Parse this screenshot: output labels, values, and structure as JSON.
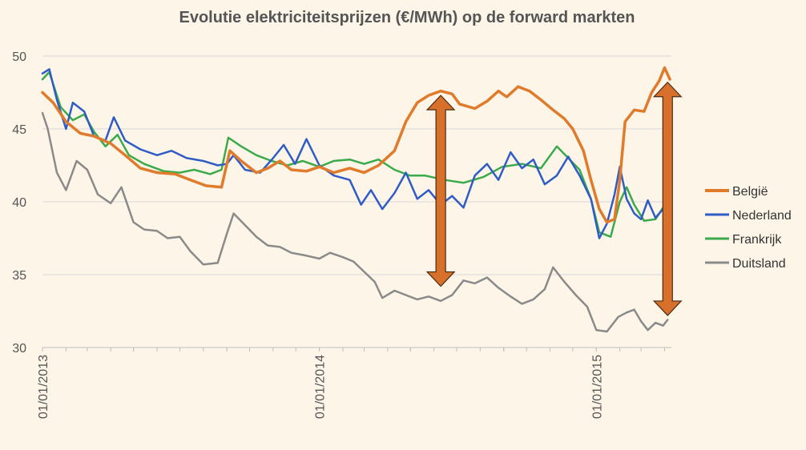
{
  "chart_data": {
    "type": "line",
    "title": "Evolutie elektriciteitsprijzen (€/MWh) op de forward markten",
    "xlabel": "",
    "ylabel": "",
    "ylim": [
      30,
      50
    ],
    "yticks": [
      30,
      35,
      40,
      45,
      50
    ],
    "xlim": [
      "2013-01-01",
      "2015-04-10"
    ],
    "xticks": [
      "01/01/2013",
      "01/01/2014",
      "01/01/2015"
    ],
    "grid": "horizontal",
    "legend_position": "right",
    "series": [
      {
        "name": "België",
        "color": "#e07b2c",
        "points": [
          [
            "2013-01-01",
            47.5
          ],
          [
            "2013-01-15",
            46.8
          ],
          [
            "2013-02-01",
            45.5
          ],
          [
            "2013-02-20",
            44.7
          ],
          [
            "2013-03-10",
            44.5
          ],
          [
            "2013-04-01",
            44.0
          ],
          [
            "2013-04-20",
            43.2
          ],
          [
            "2013-05-10",
            42.3
          ],
          [
            "2013-06-01",
            42.0
          ],
          [
            "2013-06-25",
            41.9
          ],
          [
            "2013-07-15",
            41.5
          ],
          [
            "2013-08-05",
            41.1
          ],
          [
            "2013-08-25",
            41.0
          ],
          [
            "2013-09-05",
            43.5
          ],
          [
            "2013-09-20",
            42.8
          ],
          [
            "2013-10-10",
            42.0
          ],
          [
            "2013-10-25",
            42.3
          ],
          [
            "2013-11-10",
            42.8
          ],
          [
            "2013-11-25",
            42.2
          ],
          [
            "2013-12-15",
            42.1
          ],
          [
            "2014-01-01",
            42.4
          ],
          [
            "2014-01-20",
            42.0
          ],
          [
            "2014-02-10",
            42.3
          ],
          [
            "2014-03-01",
            42.0
          ],
          [
            "2014-03-20",
            42.5
          ],
          [
            "2014-04-10",
            43.5
          ],
          [
            "2014-04-25",
            45.5
          ],
          [
            "2014-05-10",
            46.8
          ],
          [
            "2014-05-25",
            47.3
          ],
          [
            "2014-06-10",
            47.6
          ],
          [
            "2014-06-25",
            47.4
          ],
          [
            "2014-07-05",
            46.7
          ],
          [
            "2014-07-25",
            46.4
          ],
          [
            "2014-08-10",
            46.9
          ],
          [
            "2014-08-25",
            47.6
          ],
          [
            "2014-09-05",
            47.2
          ],
          [
            "2014-09-20",
            47.9
          ],
          [
            "2014-10-05",
            47.6
          ],
          [
            "2014-10-20",
            47.0
          ],
          [
            "2014-11-05",
            46.3
          ],
          [
            "2014-11-20",
            45.7
          ],
          [
            "2014-12-01",
            45.0
          ],
          [
            "2014-12-15",
            43.5
          ],
          [
            "2014-12-25",
            41.5
          ],
          [
            "2015-01-05",
            39.5
          ],
          [
            "2015-01-15",
            38.6
          ],
          [
            "2015-01-25",
            38.8
          ],
          [
            "2015-02-01",
            41.5
          ],
          [
            "2015-02-08",
            45.5
          ],
          [
            "2015-02-20",
            46.3
          ],
          [
            "2015-03-05",
            46.2
          ],
          [
            "2015-03-15",
            47.5
          ],
          [
            "2015-03-25",
            48.3
          ],
          [
            "2015-04-01",
            49.2
          ],
          [
            "2015-04-08",
            48.4
          ]
        ]
      },
      {
        "name": "Nederland",
        "color": "#2f5cc5",
        "points": [
          [
            "2013-01-01",
            48.8
          ],
          [
            "2013-01-10",
            49.1
          ],
          [
            "2013-01-20",
            47.0
          ],
          [
            "2013-02-01",
            45.0
          ],
          [
            "2013-02-10",
            46.8
          ],
          [
            "2013-02-25",
            46.2
          ],
          [
            "2013-03-10",
            44.5
          ],
          [
            "2013-03-25",
            44.2
          ],
          [
            "2013-04-05",
            45.8
          ],
          [
            "2013-04-20",
            44.2
          ],
          [
            "2013-05-10",
            43.6
          ],
          [
            "2013-06-01",
            43.2
          ],
          [
            "2013-06-20",
            43.5
          ],
          [
            "2013-07-10",
            43.0
          ],
          [
            "2013-08-01",
            42.8
          ],
          [
            "2013-08-20",
            42.5
          ],
          [
            "2013-09-01",
            42.6
          ],
          [
            "2013-09-10",
            43.2
          ],
          [
            "2013-09-25",
            42.2
          ],
          [
            "2013-10-15",
            42.0
          ],
          [
            "2013-11-01",
            43.0
          ],
          [
            "2013-11-15",
            43.9
          ],
          [
            "2013-11-30",
            42.6
          ],
          [
            "2013-12-15",
            44.3
          ],
          [
            "2014-01-01",
            42.5
          ],
          [
            "2014-01-20",
            41.8
          ],
          [
            "2014-02-10",
            41.5
          ],
          [
            "2014-02-25",
            39.8
          ],
          [
            "2014-03-10",
            40.8
          ],
          [
            "2014-03-25",
            39.5
          ],
          [
            "2014-04-10",
            40.6
          ],
          [
            "2014-04-25",
            42.0
          ],
          [
            "2014-05-10",
            40.2
          ],
          [
            "2014-05-25",
            40.8
          ],
          [
            "2014-06-10",
            39.8
          ],
          [
            "2014-06-25",
            40.4
          ],
          [
            "2014-07-10",
            39.6
          ],
          [
            "2014-07-25",
            41.8
          ],
          [
            "2014-08-10",
            42.6
          ],
          [
            "2014-08-25",
            41.5
          ],
          [
            "2014-09-10",
            43.4
          ],
          [
            "2014-09-25",
            42.3
          ],
          [
            "2014-10-10",
            42.9
          ],
          [
            "2014-10-25",
            41.2
          ],
          [
            "2014-11-10",
            41.8
          ],
          [
            "2014-11-25",
            43.1
          ],
          [
            "2014-12-10",
            41.8
          ],
          [
            "2014-12-25",
            40.2
          ],
          [
            "2015-01-05",
            37.5
          ],
          [
            "2015-01-15",
            38.5
          ],
          [
            "2015-01-25",
            40.5
          ],
          [
            "2015-02-01",
            42.4
          ],
          [
            "2015-02-10",
            40.2
          ],
          [
            "2015-02-20",
            39.2
          ],
          [
            "2015-03-01",
            38.8
          ],
          [
            "2015-03-10",
            40.1
          ],
          [
            "2015-03-20",
            38.9
          ],
          [
            "2015-03-30",
            39.5
          ]
        ]
      },
      {
        "name": "Frankrijk",
        "color": "#3aaa4a",
        "points": [
          [
            "2013-01-01",
            48.4
          ],
          [
            "2013-01-10",
            48.9
          ],
          [
            "2013-01-25",
            46.5
          ],
          [
            "2013-02-10",
            45.6
          ],
          [
            "2013-02-25",
            46.0
          ],
          [
            "2013-03-10",
            44.8
          ],
          [
            "2013-03-25",
            43.8
          ],
          [
            "2013-04-10",
            44.6
          ],
          [
            "2013-04-25",
            43.2
          ],
          [
            "2013-05-15",
            42.6
          ],
          [
            "2013-06-10",
            42.1
          ],
          [
            "2013-07-01",
            42.0
          ],
          [
            "2013-07-20",
            42.2
          ],
          [
            "2013-08-10",
            41.9
          ],
          [
            "2013-08-25",
            42.2
          ],
          [
            "2013-09-03",
            44.4
          ],
          [
            "2013-09-20",
            43.8
          ],
          [
            "2013-10-10",
            43.2
          ],
          [
            "2013-10-30",
            42.8
          ],
          [
            "2013-11-20",
            42.5
          ],
          [
            "2013-12-10",
            42.8
          ],
          [
            "2014-01-01",
            42.4
          ],
          [
            "2014-01-20",
            42.8
          ],
          [
            "2014-02-10",
            42.9
          ],
          [
            "2014-03-01",
            42.6
          ],
          [
            "2014-03-20",
            42.9
          ],
          [
            "2014-04-10",
            42.2
          ],
          [
            "2014-04-30",
            41.8
          ],
          [
            "2014-05-20",
            41.8
          ],
          [
            "2014-06-15",
            41.5
          ],
          [
            "2014-07-10",
            41.3
          ],
          [
            "2014-08-05",
            41.7
          ],
          [
            "2014-08-30",
            42.4
          ],
          [
            "2014-09-25",
            42.6
          ],
          [
            "2014-10-20",
            42.3
          ],
          [
            "2014-11-10",
            43.8
          ],
          [
            "2014-11-25",
            43.0
          ],
          [
            "2014-12-10",
            42.2
          ],
          [
            "2014-12-25",
            40.2
          ],
          [
            "2015-01-05",
            37.9
          ],
          [
            "2015-01-20",
            37.6
          ],
          [
            "2015-02-01",
            40.0
          ],
          [
            "2015-02-10",
            41.0
          ],
          [
            "2015-02-20",
            39.8
          ],
          [
            "2015-03-05",
            38.7
          ],
          [
            "2015-03-20",
            38.8
          ],
          [
            "2015-03-30",
            39.6
          ]
        ]
      },
      {
        "name": "Duitsland",
        "color": "#8a8a8a",
        "points": [
          [
            "2013-01-01",
            46.1
          ],
          [
            "2013-01-08",
            45.0
          ],
          [
            "2013-01-20",
            42.0
          ],
          [
            "2013-02-01",
            40.8
          ],
          [
            "2013-02-15",
            42.8
          ],
          [
            "2013-03-01",
            42.2
          ],
          [
            "2013-03-15",
            40.5
          ],
          [
            "2013-04-01",
            39.9
          ],
          [
            "2013-04-15",
            41.0
          ],
          [
            "2013-05-01",
            38.6
          ],
          [
            "2013-05-15",
            38.1
          ],
          [
            "2013-06-01",
            38.0
          ],
          [
            "2013-06-15",
            37.5
          ],
          [
            "2013-07-01",
            37.6
          ],
          [
            "2013-07-15",
            36.6
          ],
          [
            "2013-08-01",
            35.7
          ],
          [
            "2013-08-20",
            35.8
          ],
          [
            "2013-09-01",
            37.8
          ],
          [
            "2013-09-10",
            39.2
          ],
          [
            "2013-09-25",
            38.4
          ],
          [
            "2013-10-10",
            37.6
          ],
          [
            "2013-10-25",
            37.0
          ],
          [
            "2013-11-10",
            36.9
          ],
          [
            "2013-11-25",
            36.5
          ],
          [
            "2013-12-15",
            36.3
          ],
          [
            "2014-01-01",
            36.1
          ],
          [
            "2014-01-15",
            36.5
          ],
          [
            "2014-02-01",
            36.2
          ],
          [
            "2014-02-15",
            35.9
          ],
          [
            "2014-03-01",
            35.2
          ],
          [
            "2014-03-15",
            34.5
          ],
          [
            "2014-03-25",
            33.4
          ],
          [
            "2014-04-10",
            33.9
          ],
          [
            "2014-04-25",
            33.6
          ],
          [
            "2014-05-10",
            33.3
          ],
          [
            "2014-05-25",
            33.5
          ],
          [
            "2014-06-10",
            33.2
          ],
          [
            "2014-06-25",
            33.6
          ],
          [
            "2014-07-10",
            34.6
          ],
          [
            "2014-07-25",
            34.4
          ],
          [
            "2014-08-10",
            34.8
          ],
          [
            "2014-08-25",
            34.1
          ],
          [
            "2014-09-10",
            33.5
          ],
          [
            "2014-09-25",
            33.0
          ],
          [
            "2014-10-10",
            33.3
          ],
          [
            "2014-10-25",
            34.0
          ],
          [
            "2014-11-05",
            35.5
          ],
          [
            "2014-11-20",
            34.5
          ],
          [
            "2014-12-05",
            33.6
          ],
          [
            "2014-12-20",
            32.8
          ],
          [
            "2015-01-01",
            31.2
          ],
          [
            "2015-01-15",
            31.1
          ],
          [
            "2015-01-30",
            32.1
          ],
          [
            "2015-02-10",
            32.4
          ],
          [
            "2015-02-20",
            32.6
          ],
          [
            "2015-03-01",
            31.8
          ],
          [
            "2015-03-10",
            31.2
          ],
          [
            "2015-03-20",
            31.7
          ],
          [
            "2015-03-30",
            31.5
          ],
          [
            "2015-04-05",
            31.9
          ]
        ]
      }
    ],
    "annotations": [
      {
        "type": "double-arrow",
        "date": "2014-06-10",
        "from": 47.3,
        "to": 34.2,
        "color": "#d7702a"
      },
      {
        "type": "double-arrow",
        "date": "2015-04-05",
        "from": 48.2,
        "to": 32.2,
        "color": "#d7702a"
      }
    ]
  }
}
